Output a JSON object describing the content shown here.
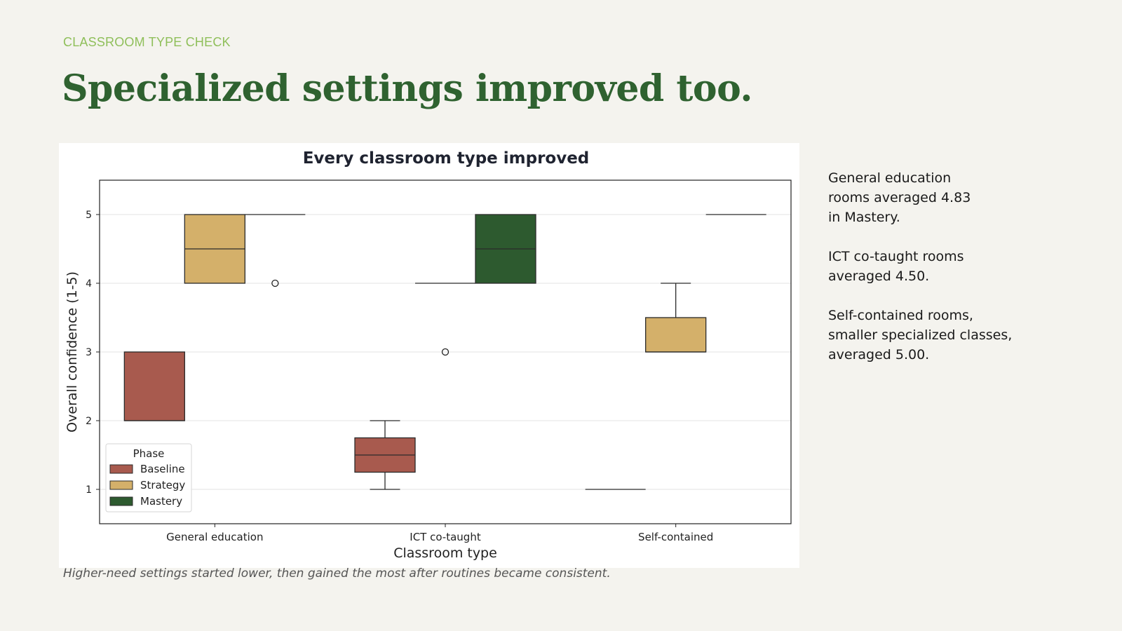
{
  "slide": {
    "eyebrow": "CLASSROOM TYPE CHECK",
    "title": "Specialized settings improved too.",
    "caption": "Higher-need settings started lower, then gained the most after routines became consistent.",
    "notes": [
      "General education\nrooms averaged 4.83\nin Mastery.",
      "ICT co-taught rooms\naveraged 4.50.",
      "Self-contained rooms,\nsmaller specialized classes,\naveraged 5.00."
    ]
  },
  "chart_data": {
    "type": "box",
    "title": "Every classroom type improved",
    "xlabel": "Classroom type",
    "ylabel": "Overall confidence (1-5)",
    "ylim": [
      0.5,
      5.5
    ],
    "yticks": [
      1,
      2,
      3,
      4,
      5
    ],
    "grid": true,
    "categories": [
      "General education",
      "ICT co-taught",
      "Self-contained"
    ],
    "legend": {
      "title": "Phase",
      "position": "lower-left"
    },
    "series": [
      {
        "name": "Baseline",
        "color": "#a85a4e",
        "boxes": [
          {
            "min": 2,
            "q1": 2,
            "median": 2,
            "q3": 3,
            "max": 3,
            "outliers": []
          },
          {
            "min": 1,
            "q1": 1.25,
            "median": 1.5,
            "q3": 1.75,
            "max": 2,
            "outliers": []
          },
          {
            "min": 1,
            "q1": 1,
            "median": 1,
            "q3": 1,
            "max": 1,
            "outliers": []
          }
        ]
      },
      {
        "name": "Strategy",
        "color": "#d4b06a",
        "boxes": [
          {
            "min": 4,
            "q1": 4,
            "median": 4.5,
            "q3": 5,
            "max": 5,
            "outliers": []
          },
          {
            "min": 4,
            "q1": 4,
            "median": 4,
            "q3": 4,
            "max": 4,
            "outliers": [
              3
            ]
          },
          {
            "min": 3,
            "q1": 3,
            "median": 3,
            "q3": 3.5,
            "max": 4,
            "outliers": []
          }
        ]
      },
      {
        "name": "Mastery",
        "color": "#2d5a2f",
        "boxes": [
          {
            "min": 5,
            "q1": 5,
            "median": 5,
            "q3": 5,
            "max": 5,
            "outliers": [
              4
            ]
          },
          {
            "min": 4,
            "q1": 4,
            "median": 4.5,
            "q3": 5,
            "max": 5,
            "outliers": []
          },
          {
            "min": 5,
            "q1": 5,
            "median": 5,
            "q3": 5,
            "max": 5,
            "outliers": []
          }
        ]
      }
    ]
  }
}
